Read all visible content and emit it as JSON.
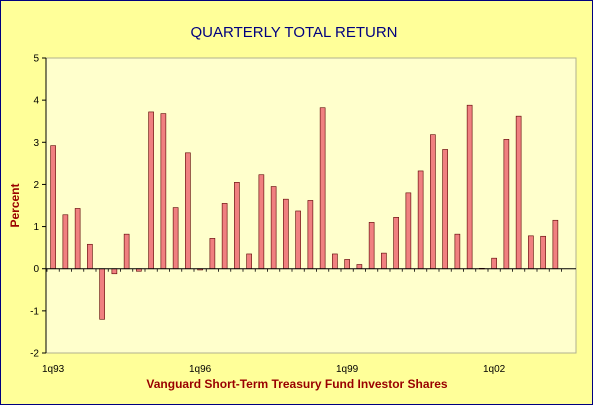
{
  "chart_data": {
    "type": "bar",
    "title": "QUARTERLY TOTAL RETURN",
    "xlabel": "Vanguard Short-Term Treasury Fund Investor Shares",
    "ylabel": "Percent",
    "ylim": [
      -2,
      5
    ],
    "yticks": [
      5,
      4,
      3,
      2,
      1,
      0,
      -1,
      -2
    ],
    "grid": false,
    "legend": "none",
    "x_tick_labels": [
      {
        "label": "1q93",
        "index": 0
      },
      {
        "label": "1q96",
        "index": 12
      },
      {
        "label": "1q99",
        "index": 24
      },
      {
        "label": "1q02",
        "index": 36
      }
    ],
    "categories": [
      "1q93",
      "2q93",
      "3q93",
      "4q93",
      "1q94",
      "2q94",
      "3q94",
      "4q94",
      "1q95",
      "2q95",
      "3q95",
      "4q95",
      "1q96",
      "2q96",
      "3q96",
      "4q96",
      "1q97",
      "2q97",
      "3q97",
      "4q97",
      "1q98",
      "2q98",
      "3q98",
      "4q98",
      "1q99",
      "2q99",
      "3q99",
      "4q99",
      "1q00",
      "2q00",
      "3q00",
      "4q00",
      "1q01",
      "2q01",
      "3q01",
      "4q01",
      "1q02",
      "2q02",
      "3q02",
      "4q02",
      "1q03",
      "2q03"
    ],
    "values": [
      2.92,
      1.28,
      1.43,
      0.58,
      -1.2,
      -0.12,
      0.82,
      -0.06,
      3.72,
      3.68,
      1.45,
      2.75,
      -0.03,
      0.72,
      1.55,
      2.05,
      0.35,
      2.23,
      1.95,
      1.65,
      1.37,
      1.62,
      3.82,
      0.35,
      0.22,
      0.1,
      1.1,
      0.37,
      1.22,
      1.8,
      2.32,
      3.18,
      2.83,
      0.82,
      3.88,
      0.01,
      0.25,
      3.07,
      3.62,
      0.78,
      0.77,
      1.15
    ],
    "colors": {
      "bar_fill": "#f08080",
      "bar_stroke": "#5a0000",
      "plot_bg": "#ffffcc",
      "page_bg": "#ffff99",
      "title": "#000080",
      "axis_label": "#990000",
      "axis": "#000000"
    }
  }
}
